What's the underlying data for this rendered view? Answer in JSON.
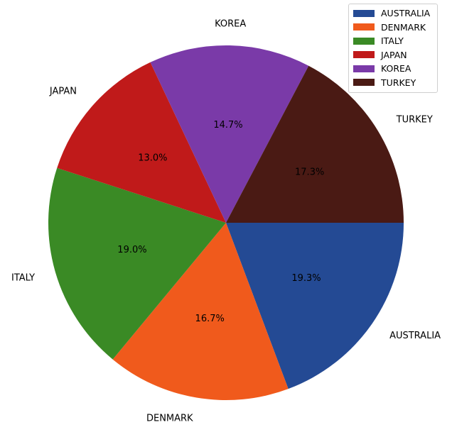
{
  "chart_data": {
    "type": "pie",
    "title": "",
    "categories": [
      "AUSTRALIA",
      "DENMARK",
      "ITALY",
      "JAPAN",
      "KOREA",
      "TURKEY"
    ],
    "values": [
      19.3,
      16.7,
      19.0,
      13.0,
      14.7,
      17.3
    ],
    "percent_labels": [
      "19.3%",
      "16.7%",
      "19.0%",
      "13.0%",
      "14.7%",
      "17.3%"
    ],
    "colors": [
      "#244a94",
      "#f05a1c",
      "#3a8a25",
      "#c01a1a",
      "#7a3aa8",
      "#4a1a14"
    ],
    "start_angle_deg": 0,
    "direction": "clockwise",
    "legend_position": "top-right",
    "legend": [
      "AUSTRALIA",
      "DENMARK",
      "ITALY",
      "JAPAN",
      "KOREA",
      "TURKEY"
    ]
  }
}
